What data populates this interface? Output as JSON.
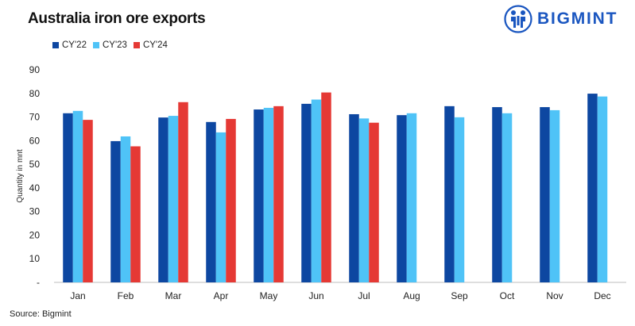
{
  "header": {
    "title": "Australia iron ore exports",
    "brand": "BIGMINT",
    "brand_color": "#1a56c0"
  },
  "footer": {
    "source": "Source: Bigmint"
  },
  "chart_data": {
    "type": "bar",
    "title": "Australia iron ore exports",
    "xlabel": "",
    "ylabel": "Quantity in mnt",
    "ylim": [
      0,
      90
    ],
    "yticks": [
      0,
      10,
      20,
      30,
      40,
      50,
      60,
      70,
      80,
      90
    ],
    "ytick_labels": [
      "-",
      "10",
      "20",
      "30",
      "40",
      "50",
      "60",
      "70",
      "80",
      "90"
    ],
    "grid": false,
    "legend_position": "top-left",
    "categories": [
      "Jan",
      "Feb",
      "Mar",
      "Apr",
      "May",
      "Jun",
      "Jul",
      "Aug",
      "Sep",
      "Oct",
      "Nov",
      "Dec"
    ],
    "series": [
      {
        "name": "CY'22",
        "color": "#0d47a1",
        "values": [
          71.6,
          59.8,
          69.8,
          67.9,
          73.2,
          75.6,
          71.2,
          70.8,
          74.6,
          74.2,
          74.2,
          79.9
        ]
      },
      {
        "name": "CY'23",
        "color": "#4fc3f7",
        "values": [
          72.6,
          61.8,
          70.5,
          63.5,
          73.9,
          77.4,
          69.4,
          71.6,
          69.9,
          71.6,
          72.9,
          78.7
        ]
      },
      {
        "name": "CY'24",
        "color": "#e53935",
        "values": [
          68.8,
          57.6,
          76.3,
          69.2,
          74.6,
          80.4,
          67.6,
          null,
          null,
          null,
          null,
          null
        ]
      }
    ]
  }
}
